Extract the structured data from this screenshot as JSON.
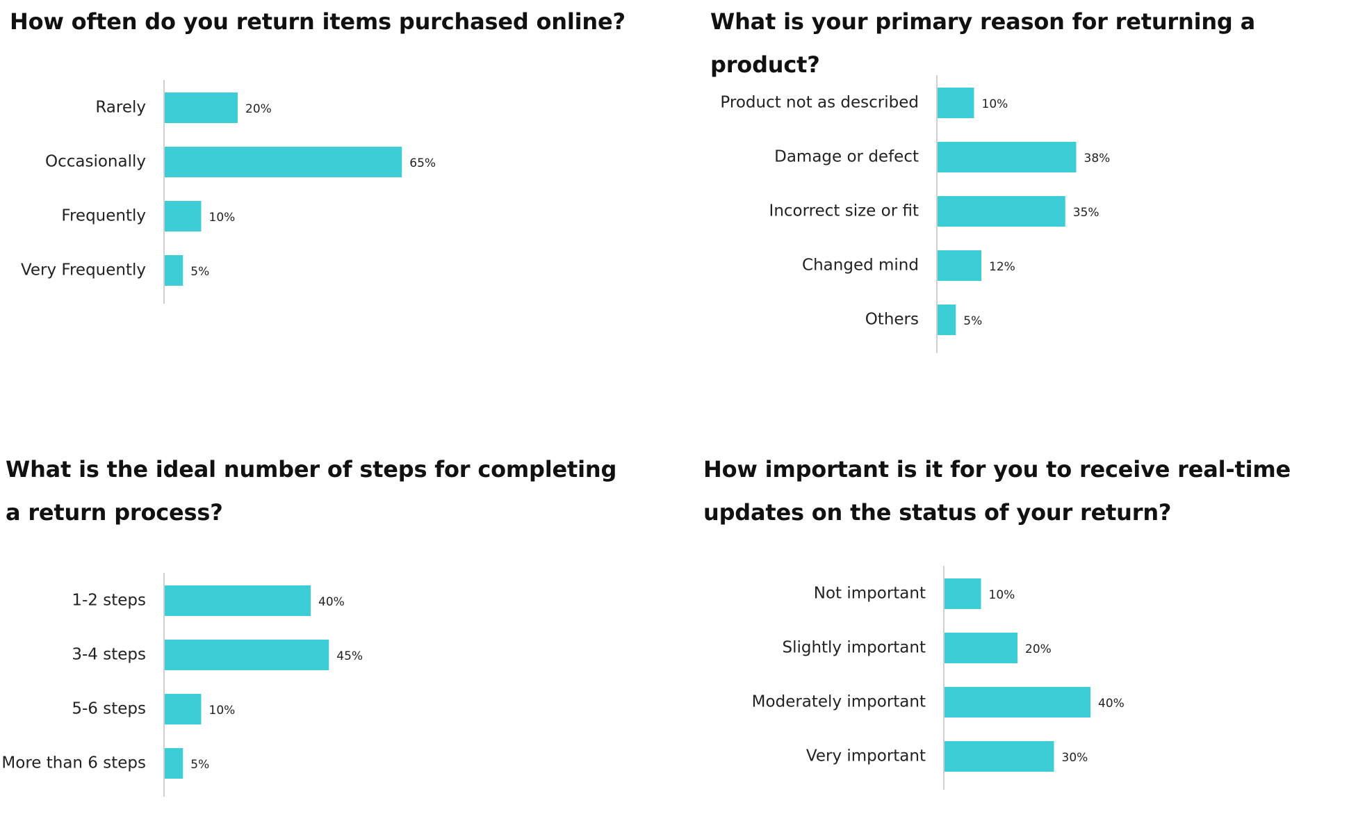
{
  "colors": {
    "bar": "#3ccdd7",
    "axis": "#cfcfcf"
  },
  "chart_data": [
    {
      "type": "bar",
      "orientation": "horizontal",
      "title": "How often do you return items purchased online?",
      "categories": [
        "Rarely",
        "Occasionally",
        "Frequently",
        "Very Frequently"
      ],
      "values": [
        20,
        65,
        10,
        5
      ],
      "value_labels": [
        "20%",
        "65%",
        "10%",
        "5%"
      ],
      "unit": "%",
      "xlim": [
        0,
        100
      ]
    },
    {
      "type": "bar",
      "orientation": "horizontal",
      "title": "What is your primary reason for returning a product?",
      "categories": [
        "Product not as described",
        "Damage or defect",
        "Incorrect size or fit",
        "Changed mind",
        "Others"
      ],
      "values": [
        10,
        38,
        35,
        12,
        5
      ],
      "value_labels": [
        "10%",
        "38%",
        "35%",
        "12%",
        "5%"
      ],
      "unit": "%",
      "xlim": [
        0,
        100
      ]
    },
    {
      "type": "bar",
      "orientation": "horizontal",
      "title": "What is the ideal number of steps for completing a return process?",
      "categories": [
        "1-2 steps",
        "3-4 steps",
        "5-6 steps",
        "More than 6 steps"
      ],
      "values": [
        40,
        45,
        10,
        5
      ],
      "value_labels": [
        "40%",
        "45%",
        "10%",
        "5%"
      ],
      "unit": "%",
      "xlim": [
        0,
        100
      ]
    },
    {
      "type": "bar",
      "orientation": "horizontal",
      "title": "How important is it for you to receive real-time updates on the status of your return?",
      "categories": [
        "Not important",
        "Slightly important",
        "Moderately important",
        "Very important"
      ],
      "values": [
        10,
        20,
        40,
        30
      ],
      "value_labels": [
        "10%",
        "20%",
        "40%",
        "30%"
      ],
      "unit": "%",
      "xlim": [
        0,
        100
      ]
    }
  ]
}
